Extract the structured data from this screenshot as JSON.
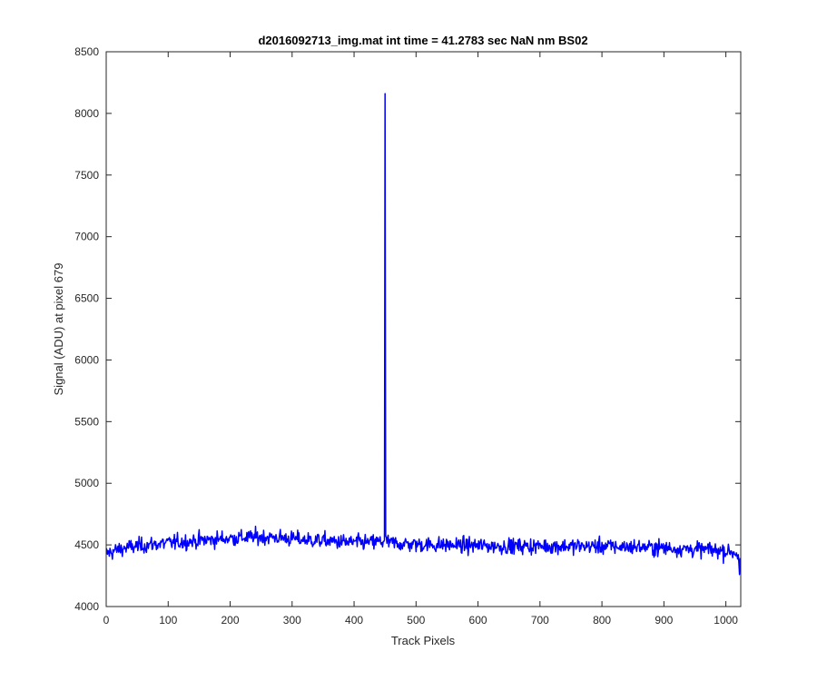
{
  "chart_data": {
    "type": "line",
    "title": "d2016092713_img.mat int time = 41.2783 sec  NaN nm BS02",
    "xlabel": "Track Pixels",
    "ylabel": "Signal (ADU) at pixel 679",
    "xlim": [
      0,
      1024
    ],
    "ylim": [
      4000,
      8500
    ],
    "xticks": [
      "0",
      "100",
      "200",
      "300",
      "400",
      "500",
      "600",
      "700",
      "800",
      "900",
      "1000"
    ],
    "yticks": [
      "4000",
      "4500",
      "5000",
      "5500",
      "6000",
      "6500",
      "7000",
      "7500",
      "8000",
      "8500"
    ],
    "grid": false,
    "line_color": "#0000ff",
    "series": [
      {
        "x": [
          0,
          25,
          50,
          75,
          100,
          125,
          150,
          175,
          200,
          225,
          250,
          275,
          300,
          325,
          350,
          375,
          400,
          425,
          440,
          449,
          450,
          451,
          452,
          455,
          475,
          500,
          525,
          550,
          575,
          600,
          625,
          650,
          675,
          700,
          725,
          750,
          775,
          800,
          825,
          850,
          875,
          900,
          925,
          950,
          975,
          1000,
          1015,
          1020,
          1022,
          1024
        ],
        "values": [
          4430,
          4470,
          4490,
          4505,
          4515,
          4525,
          4535,
          4545,
          4555,
          4560,
          4565,
          4560,
          4550,
          4540,
          4535,
          4525,
          4520,
          4520,
          4525,
          4530,
          8160,
          4540,
          4525,
          4520,
          4510,
          4505,
          4500,
          4500,
          4495,
          4495,
          4490,
          4490,
          4490,
          4490,
          4490,
          4490,
          4490,
          4490,
          4485,
          4485,
          4480,
          4475,
          4470,
          4465,
          4460,
          4450,
          4440,
          4420,
          4260,
          4450
        ]
      }
    ]
  }
}
